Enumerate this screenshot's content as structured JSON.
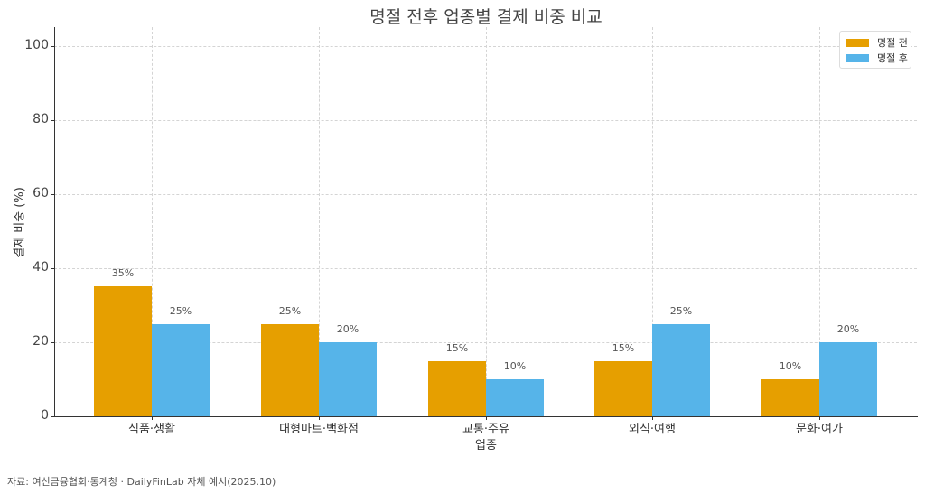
{
  "chart_data": {
    "type": "bar",
    "title": "명절 전후 업종별 결제 비중 비교",
    "xlabel": "업종",
    "ylabel": "결제 비중 (%)",
    "ylim": [
      0,
      105
    ],
    "yticks": [
      0,
      20,
      40,
      60,
      80,
      100
    ],
    "grid": true,
    "legend_position": "upper right",
    "categories": [
      "식품·생활",
      "대형마트·백화점",
      "교통·주유",
      "외식·여행",
      "문화·여가"
    ],
    "series": [
      {
        "name": "명절 전",
        "color": "#E69F00",
        "values": [
          35,
          25,
          15,
          15,
          10
        ],
        "labels": [
          "35%",
          "25%",
          "15%",
          "15%",
          "10%"
        ]
      },
      {
        "name": "명절 후",
        "color": "#56B4E9",
        "values": [
          25,
          20,
          10,
          25,
          20
        ],
        "labels": [
          "25%",
          "20%",
          "10%",
          "25%",
          "20%"
        ]
      }
    ]
  },
  "source_note": "자료: 여신금융협회·통계청 · DailyFinLab 자체 예시(2025.10)"
}
